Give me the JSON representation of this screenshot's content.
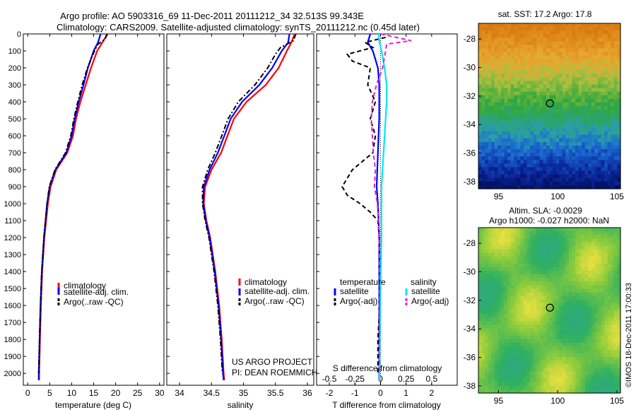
{
  "header": {
    "line1": "Argo profile: AO 5903316_69 11-Dec-2011 20111212_34 32.513S 99.343E",
    "line2": "Climatology: CARS2009. Satellite-adjusted climatology: synTS_20111212.nc (0.45d later)"
  },
  "credits": {
    "project": "US ARGO PROJECT",
    "pi": "PI: DEAN ROEMMICH",
    "imos": "©IMOS 18-Dec-2011 17:00:33"
  },
  "colors": {
    "climatology": "#ff0000",
    "satellite": "#0000ff",
    "argo": "#000000",
    "salinity_satellite": "#00e5ff",
    "salinity_argo": "#e020e0"
  },
  "chart_data": [
    {
      "type": "line",
      "panel": "temperature",
      "xlabel": "temperature (deg C)",
      "ylabel": "",
      "xlim": [
        -1,
        31
      ],
      "ylim": [
        2070,
        0
      ],
      "x_ticks": [
        0,
        5,
        10,
        15,
        20,
        25,
        30
      ],
      "y_ticks": [
        0,
        100,
        200,
        300,
        400,
        500,
        600,
        700,
        800,
        900,
        1000,
        1100,
        1200,
        1300,
        1400,
        1500,
        1600,
        1700,
        1800,
        1900,
        2000
      ],
      "legend": [
        "climatology",
        "satellite-adj. clim.",
        "Argo(..raw -QC)"
      ],
      "legend_position": "lower-center",
      "series": [
        {
          "name": "climatology",
          "color": "#ff0000",
          "style": "solid",
          "depth": [
            0,
            50,
            100,
            200,
            300,
            400,
            500,
            600,
            700,
            800,
            900,
            1000,
            1200,
            1400,
            1600,
            1800,
            2000,
            2040
          ],
          "values": [
            18.2,
            17.0,
            15.8,
            14.4,
            13.2,
            12.0,
            11.0,
            10.3,
            9.0,
            6.5,
            5.2,
            4.6,
            3.8,
            3.3,
            3.0,
            2.8,
            2.6,
            2.6
          ]
        },
        {
          "name": "satellite-adj. clim.",
          "color": "#0000ff",
          "style": "solid",
          "depth": [
            0,
            50,
            100,
            200,
            300,
            400,
            500,
            600,
            700,
            800,
            900,
            1000,
            1200,
            1400,
            1600,
            1800,
            2000,
            2040
          ],
          "values": [
            16.6,
            16.0,
            15.0,
            13.7,
            12.7,
            11.6,
            10.7,
            10.0,
            8.8,
            6.3,
            5.0,
            4.4,
            3.7,
            3.2,
            2.9,
            2.7,
            2.5,
            2.5
          ]
        },
        {
          "name": "Argo(..raw -QC)",
          "color": "#000000",
          "style": "dashdot",
          "depth": [
            0,
            30,
            60,
            100,
            200,
            300,
            400,
            500,
            600,
            700,
            800,
            900,
            1000,
            1200,
            1400,
            1600,
            1800,
            2000
          ],
          "values": [
            18.0,
            17.6,
            16.0,
            15.2,
            13.6,
            12.4,
            11.4,
            10.5,
            9.8,
            8.6,
            6.2,
            4.9,
            4.4,
            3.7,
            3.2,
            2.9,
            2.7,
            2.5
          ]
        }
      ]
    },
    {
      "type": "line",
      "panel": "salinity",
      "xlabel": "salinity",
      "ylabel": "",
      "xlim": [
        33.8,
        36.1
      ],
      "ylim": [
        2070,
        0
      ],
      "x_ticks": [
        34,
        34.5,
        35,
        35.5,
        36
      ],
      "legend": [
        "climatology",
        "satellite-adj. clim.",
        "Argo(..raw -QC)"
      ],
      "legend_position": "lower-right",
      "series": [
        {
          "name": "climatology",
          "color": "#ff0000",
          "style": "solid",
          "depth": [
            0,
            50,
            100,
            200,
            300,
            400,
            500,
            600,
            700,
            800,
            900,
            1000,
            1100,
            1200,
            1400,
            1600,
            1800,
            2000,
            2040
          ],
          "values": [
            35.8,
            35.75,
            35.68,
            35.55,
            35.35,
            35.05,
            34.85,
            34.75,
            34.65,
            34.5,
            34.4,
            34.38,
            34.42,
            34.48,
            34.56,
            34.62,
            34.66,
            34.69,
            34.7
          ]
        },
        {
          "name": "satellite-adj. clim.",
          "color": "#0000ff",
          "style": "solid",
          "depth": [
            0,
            50,
            100,
            200,
            300,
            400,
            500,
            600,
            700,
            800,
            900,
            1000,
            1100,
            1200,
            1400,
            1600,
            1800,
            2000,
            2040
          ],
          "values": [
            35.72,
            35.7,
            35.6,
            35.45,
            35.25,
            34.98,
            34.8,
            34.7,
            34.6,
            34.47,
            34.38,
            34.37,
            34.41,
            34.47,
            34.55,
            34.61,
            34.65,
            34.68,
            34.69
          ]
        },
        {
          "name": "Argo(..raw -QC)",
          "color": "#000000",
          "style": "dashdot",
          "depth": [
            0,
            40,
            80,
            120,
            200,
            300,
            400,
            500,
            600,
            700,
            800,
            900,
            1000,
            1100,
            1200,
            1400,
            1600,
            1800,
            2000
          ],
          "values": [
            35.82,
            35.78,
            35.58,
            35.5,
            35.38,
            35.18,
            34.92,
            34.76,
            34.66,
            34.56,
            34.44,
            34.36,
            34.36,
            34.4,
            34.46,
            34.54,
            34.6,
            34.64,
            34.67
          ]
        }
      ]
    },
    {
      "type": "line",
      "panel": "difference",
      "xlabel": "T difference from climatology",
      "xlabel_top": "S difference from climatology",
      "xlim": [
        -2.5,
        3.0
      ],
      "ylim": [
        2070,
        0
      ],
      "x_ticks_T": [
        -2,
        -1,
        0,
        1,
        2
      ],
      "x_ticks_S_labels": [
        "-0.5",
        "-0.25",
        "0",
        "0.25",
        "0.5"
      ],
      "x_ticks_S": [
        -0.5,
        -0.25,
        0,
        0.25,
        0.5
      ],
      "legend_groups": {
        "temperature": [
          "satellite",
          "Argo(-adj)"
        ],
        "salinity": [
          "satellite",
          "Argo(-adj)"
        ]
      },
      "legend_position": "lower-center",
      "series": [
        {
          "name": "satellite",
          "group": "temperature",
          "color": "#0000ff",
          "style": "solid",
          "depth": [
            0,
            50,
            100,
            200,
            300,
            500,
            700,
            900,
            1000,
            1200,
            1500,
            2000,
            2040
          ],
          "values": [
            -0.4,
            -0.5,
            -0.3,
            -0.1,
            -0.05,
            -0.05,
            -0.1,
            -0.15,
            -0.1,
            -0.05,
            -0.05,
            -0.05,
            -0.05
          ]
        },
        {
          "name": "Argo(-adj)",
          "group": "temperature",
          "color": "#000000",
          "style": "dashed",
          "depth": [
            20,
            50,
            80,
            120,
            160,
            200,
            300,
            400,
            500,
            600,
            700,
            800,
            900,
            950,
            1000,
            1050,
            1100,
            1200,
            1500,
            1800,
            2000
          ],
          "values": [
            0.2,
            -0.6,
            -0.3,
            -1.3,
            -1.1,
            -0.4,
            -0.5,
            -0.2,
            -0.4,
            -0.2,
            -0.3,
            -1.1,
            -1.5,
            -1.3,
            -0.8,
            -0.4,
            -0.1,
            -0.05,
            0.0,
            -0.1,
            -0.1
          ]
        },
        {
          "name": "satellite",
          "group": "salinity",
          "color": "#00e5ff",
          "style": "solid",
          "depth": [
            0,
            50,
            100,
            200,
            300,
            400,
            500,
            700,
            900,
            1000,
            1200,
            1500,
            2000,
            2040
          ],
          "values": [
            -0.02,
            -0.01,
            0.01,
            0.04,
            0.06,
            0.06,
            0.05,
            0.03,
            0.01,
            0.01,
            0.01,
            0.0,
            -0.01,
            -0.01
          ]
        },
        {
          "name": "Argo(-adj)",
          "group": "salinity",
          "color": "#e020e0",
          "style": "dashed",
          "depth": [
            0,
            20,
            40,
            60,
            100,
            200,
            300,
            400,
            500,
            600,
            700,
            800,
            900,
            1000,
            1100,
            1300,
            1500,
            1800,
            2000
          ],
          "values": [
            0.0,
            0.15,
            0.3,
            0.06,
            0.05,
            0.02,
            -0.04,
            -0.08,
            -0.09,
            -0.08,
            -0.07,
            -0.05,
            -0.06,
            -0.03,
            -0.02,
            -0.01,
            -0.01,
            -0.01,
            -0.01
          ]
        }
      ]
    },
    {
      "type": "heatmap",
      "panel": "sst-map",
      "title": "sat. SST: 17.2  Argo: 17.8",
      "xlim": [
        93.3,
        105.3
      ],
      "ylim": [
        -38.5,
        -26.9
      ],
      "x_ticks": [
        95,
        100,
        105
      ],
      "y_ticks": [
        -28,
        -30,
        -32,
        -34,
        -36,
        -38
      ],
      "argo_position": {
        "lon": 99.343,
        "lat": -32.513
      },
      "color_bands": "orange (north) → green (centre) → blue/navy (south)"
    },
    {
      "type": "heatmap",
      "panel": "sla-map",
      "title_line1": "Altim. SLA: -0.0029",
      "title_line2": "Argo h1000: -0.027 h2000: NaN",
      "xlim": [
        93.3,
        105.3
      ],
      "ylim": [
        -38.5,
        -26.9
      ],
      "x_ticks": [
        95,
        100,
        105
      ],
      "y_ticks": [
        -28,
        -30,
        -32,
        -34,
        -36,
        -38
      ],
      "argo_position": {
        "lon": 99.343,
        "lat": -32.513
      },
      "color_bands": "green field with yellow highs and teal lows"
    }
  ]
}
